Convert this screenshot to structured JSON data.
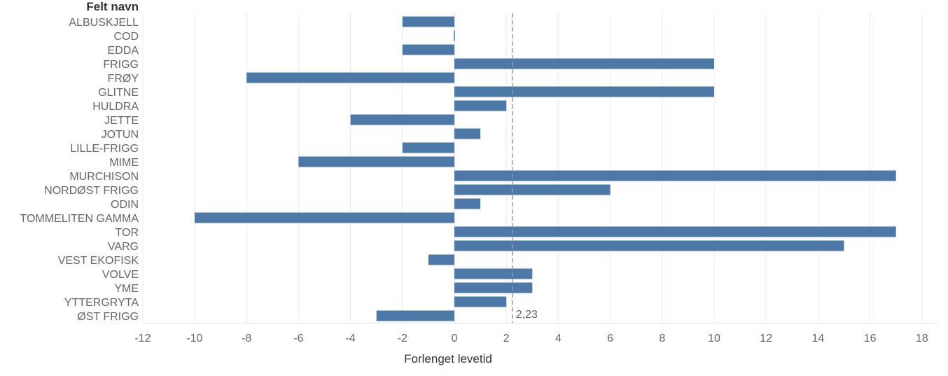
{
  "chart_data": {
    "type": "bar",
    "orientation": "horizontal",
    "category_header": "Felt navn",
    "xlabel": "Forlenget levetid",
    "categories": [
      "ALBUSKJELL",
      "COD",
      "EDDA",
      "FRIGG",
      "FRØY",
      "GLITNE",
      "HULDRA",
      "JETTE",
      "JOTUN",
      "LILLE-FRIGG",
      "MIME",
      "MURCHISON",
      "NORDØST FRIGG",
      "ODIN",
      "TOMMELITEN GAMMA",
      "TOR",
      "VARG",
      "VEST EKOFISK",
      "VOLVE",
      "YME",
      "YTTERGRYTA",
      "ØST FRIGG"
    ],
    "values": [
      -2,
      0,
      -2,
      10,
      -8,
      10,
      2,
      -4,
      1,
      -2,
      -6,
      17,
      6,
      1,
      -10,
      17,
      15,
      -1,
      3,
      3,
      2,
      -3
    ],
    "xlim": [
      -12,
      18
    ],
    "xticks": [
      -12,
      -10,
      -8,
      -6,
      -4,
      -2,
      0,
      2,
      4,
      6,
      8,
      10,
      12,
      14,
      16,
      18
    ],
    "xtick_labels": [
      "-12",
      "-10",
      "-8",
      "-6",
      "-4",
      "-2",
      "0",
      "2",
      "4",
      "6",
      "8",
      "10",
      "12",
      "14",
      "16",
      "18"
    ],
    "reference_line": {
      "value": 2.23,
      "label": "2,23",
      "style": "dashed"
    },
    "grid": "vertical",
    "legend": "none",
    "colors": {
      "bar": "#4e79a7",
      "grid": "#ebebeb",
      "reference": "#9a9a9a",
      "text": "#666666",
      "title": "#333333"
    }
  }
}
